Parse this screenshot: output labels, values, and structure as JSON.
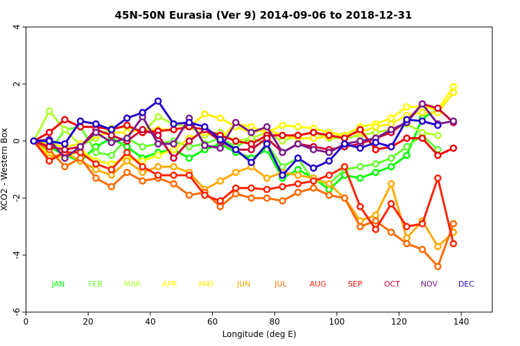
{
  "chart_data": {
    "type": "line",
    "title": "45N-50N Eurasia (Ver 9)   2014-09-06 to 2018-12-31",
    "xlabel": "Longitude (deg E)",
    "ylabel": "XCO2 - Western Box",
    "xlim": [
      0,
      150
    ],
    "ylim": [
      -6,
      4
    ],
    "xticks": [
      0,
      20,
      40,
      60,
      80,
      100,
      120,
      140
    ],
    "yticks": [
      -6,
      -4,
      -2,
      0,
      2,
      4
    ],
    "grid": false,
    "legend_position": "bottom",
    "series": [
      {
        "name": "JAN",
        "color": "#00ff00",
        "x": [
          2.5,
          7.5,
          12.5,
          17.5,
          22.5,
          27.5,
          32.5,
          37.5,
          42.5,
          47.5,
          52.5,
          57.5,
          62.5,
          67.5,
          72.5,
          77.5,
          82.5,
          87.5,
          92.5,
          97.5,
          102.5,
          107.5,
          112.5,
          117.5,
          122.5,
          127.5,
          132.5
        ],
        "y": [
          0.0,
          -0.2,
          -0.5,
          -0.7,
          -0.2,
          0.1,
          -0.2,
          -0.6,
          -0.4,
          -0.3,
          -0.6,
          -0.3,
          -0.1,
          -0.4,
          -0.6,
          -0.3,
          -1.3,
          -1.0,
          -1.3,
          -1.7,
          -1.2,
          -1.3,
          -1.1,
          -0.9,
          -0.5,
          0.8,
          1.1
        ]
      },
      {
        "name": "FEB",
        "color": "#66ff33",
        "x": [
          2.5,
          7.5,
          12.5,
          17.5,
          22.5,
          27.5,
          32.5,
          37.5,
          42.5,
          47.5,
          52.5,
          57.5,
          62.5,
          67.5,
          72.5,
          77.5,
          82.5,
          87.5,
          92.5,
          97.5,
          102.5,
          107.5,
          112.5,
          117.5,
          122.5,
          127.5,
          132.5
        ],
        "y": [
          0.0,
          -0.4,
          0.4,
          0.5,
          -0.4,
          -0.5,
          0.1,
          -0.2,
          -0.1,
          0.0,
          -0.2,
          -0.1,
          0.1,
          -0.2,
          0.1,
          -0.1,
          -0.9,
          -0.6,
          -1.4,
          -1.5,
          -1.0,
          -0.9,
          -0.8,
          -0.6,
          -0.2,
          0.2,
          -0.3
        ]
      },
      {
        "name": "MAR",
        "color": "#b2ff2e",
        "x": [
          2.5,
          7.5,
          12.5,
          17.5,
          22.5,
          27.5,
          32.5,
          37.5,
          42.5,
          47.5,
          52.5,
          57.5,
          62.5,
          67.5,
          72.5,
          77.5,
          82.5,
          87.5,
          92.5,
          97.5,
          102.5,
          107.5,
          112.5,
          117.5,
          122.5,
          127.5,
          132.5
        ],
        "y": [
          0.0,
          1.05,
          0.4,
          -0.15,
          0.1,
          0.45,
          0.5,
          0.3,
          0.85,
          0.6,
          0.5,
          0.2,
          0.3,
          0.0,
          0.1,
          0.3,
          0.0,
          0.2,
          0.3,
          0.1,
          0.1,
          0.2,
          0.3,
          0.4,
          0.6,
          0.3,
          0.2
        ]
      },
      {
        "name": "APR",
        "color": "#ffff00",
        "x": [
          2.5,
          7.5,
          12.5,
          17.5,
          22.5,
          27.5,
          32.5,
          37.5,
          42.5,
          47.5,
          52.5,
          57.5,
          62.5,
          67.5,
          72.5,
          77.5,
          82.5,
          87.5,
          92.5,
          97.5,
          102.5,
          107.5,
          112.5,
          117.5,
          122.5,
          127.5,
          132.5,
          137.5
        ],
        "y": [
          0.0,
          -0.5,
          -0.6,
          -0.3,
          -0.7,
          -0.8,
          -0.6,
          -0.7,
          -0.5,
          -0.3,
          0.1,
          0.3,
          0.1,
          0.6,
          0.5,
          0.3,
          0.55,
          0.5,
          0.45,
          0.3,
          0.2,
          0.5,
          0.6,
          0.8,
          1.2,
          1.2,
          1.1,
          1.9
        ]
      },
      {
        "name": "MAY",
        "color": "#ffee00",
        "x": [
          2.5,
          7.5,
          12.5,
          17.5,
          22.5,
          27.5,
          32.5,
          37.5,
          42.5,
          47.5,
          52.5,
          57.5,
          62.5,
          67.5,
          72.5,
          77.5,
          82.5,
          87.5,
          92.5,
          97.5,
          102.5,
          107.5,
          112.5,
          117.5,
          122.5,
          127.5,
          132.5,
          137.5
        ],
        "y": [
          0.0,
          -0.1,
          -0.2,
          -0.1,
          0.2,
          0.3,
          0.3,
          0.4,
          0.4,
          0.4,
          0.5,
          0.95,
          0.8,
          0.5,
          0.3,
          0.4,
          0.2,
          0.1,
          0.1,
          0.15,
          0.2,
          0.3,
          0.5,
          0.6,
          0.9,
          1.0,
          1.0,
          1.7
        ]
      },
      {
        "name": "JUN",
        "color": "#ffaa00",
        "x": [
          2.5,
          7.5,
          12.5,
          17.5,
          22.5,
          27.5,
          32.5,
          37.5,
          42.5,
          47.5,
          52.5,
          57.5,
          62.5,
          67.5,
          72.5,
          77.5,
          82.5,
          87.5,
          92.5,
          97.5,
          102.5,
          107.5,
          112.5,
          117.5,
          122.5,
          127.5,
          132.5,
          137.5
        ],
        "y": [
          0.0,
          -0.6,
          -0.4,
          -0.7,
          -1.0,
          -1.2,
          -0.7,
          -1.1,
          -0.9,
          -0.9,
          -1.1,
          -1.7,
          -1.4,
          -1.1,
          -0.9,
          -1.3,
          -1.1,
          -1.2,
          -1.3,
          -1.5,
          -2.0,
          -2.8,
          -2.6,
          -1.5,
          -3.4,
          -2.8,
          -3.7,
          -3.2
        ]
      },
      {
        "name": "JUL",
        "color": "#ff6a00",
        "x": [
          2.5,
          7.5,
          12.5,
          17.5,
          22.5,
          27.5,
          32.5,
          37.5,
          42.5,
          47.5,
          52.5,
          57.5,
          62.5,
          67.5,
          72.5,
          77.5,
          82.5,
          87.5,
          92.5,
          97.5,
          102.5,
          107.5,
          112.5,
          117.5,
          122.5,
          127.5,
          132.5,
          137.5
        ],
        "y": [
          0.0,
          -0.3,
          -0.9,
          -0.6,
          -1.3,
          -1.6,
          -1.1,
          -1.4,
          -1.3,
          -1.5,
          -1.9,
          -1.8,
          -2.3,
          -1.85,
          -2.0,
          -2.0,
          -2.1,
          -1.8,
          -1.65,
          -1.9,
          -2.0,
          -3.0,
          -2.8,
          -3.2,
          -3.6,
          -3.8,
          -4.4,
          -2.9
        ]
      },
      {
        "name": "AUG",
        "color": "#ff2200",
        "x": [
          2.5,
          7.5,
          12.5,
          17.5,
          22.5,
          27.5,
          32.5,
          37.5,
          42.5,
          47.5,
          52.5,
          57.5,
          62.5,
          67.5,
          72.5,
          77.5,
          82.5,
          87.5,
          92.5,
          97.5,
          102.5,
          107.5,
          112.5,
          117.5,
          122.5,
          127.5,
          132.5,
          137.5
        ],
        "y": [
          0.0,
          -0.7,
          -0.4,
          -0.4,
          -0.8,
          -1.0,
          -0.4,
          -0.9,
          -1.2,
          -1.2,
          -1.2,
          -1.9,
          -2.1,
          -1.65,
          -1.65,
          -1.7,
          -1.6,
          -1.5,
          -1.4,
          -1.2,
          -0.9,
          -2.3,
          -3.1,
          -2.2,
          -3.0,
          -2.9,
          -1.3,
          -3.6
        ]
      },
      {
        "name": "SEP",
        "color": "#ee0000",
        "x": [
          2.5,
          7.5,
          12.5,
          17.5,
          22.5,
          27.5,
          32.5,
          37.5,
          42.5,
          47.5,
          52.5,
          57.5,
          62.5,
          67.5,
          72.5,
          77.5,
          82.5,
          87.5,
          92.5,
          97.5,
          102.5,
          107.5,
          112.5,
          117.5,
          122.5,
          127.5,
          132.5,
          137.5
        ],
        "y": [
          0.0,
          0.3,
          0.75,
          0.5,
          0.5,
          0.4,
          0.55,
          0.3,
          0.35,
          0.4,
          0.5,
          0.4,
          0.2,
          0.0,
          -0.1,
          0.2,
          0.2,
          0.2,
          0.3,
          0.2,
          0.1,
          0.4,
          -0.3,
          -0.2,
          0.1,
          0.1,
          -0.5,
          -0.25
        ]
      },
      {
        "name": "OCT",
        "color": "#cc0033",
        "x": [
          2.5,
          7.5,
          12.5,
          17.5,
          22.5,
          27.5,
          32.5,
          37.5,
          42.5,
          47.5,
          52.5,
          57.5,
          62.5,
          67.5,
          72.5,
          77.5,
          82.5,
          87.5,
          92.5,
          97.5,
          102.5,
          107.5,
          112.5,
          117.5,
          122.5,
          127.5,
          132.5,
          137.5
        ],
        "y": [
          0.0,
          -0.2,
          -0.3,
          -0.2,
          0.4,
          0.2,
          0.0,
          0.4,
          0.2,
          -0.6,
          0.0,
          0.4,
          0.0,
          -0.3,
          -0.3,
          0.1,
          -0.4,
          -0.1,
          -0.2,
          -0.3,
          -0.2,
          -0.1,
          0.1,
          0.3,
          0.7,
          1.3,
          1.15,
          0.65
        ]
      },
      {
        "name": "NOV",
        "color": "#7a1a8a",
        "x": [
          2.5,
          7.5,
          12.5,
          17.5,
          22.5,
          27.5,
          32.5,
          37.5,
          42.5,
          47.5,
          52.5,
          57.5,
          62.5,
          67.5,
          72.5,
          77.5,
          82.5,
          87.5,
          92.5,
          97.5,
          102.5,
          107.5,
          112.5,
          117.5,
          122.5,
          127.5,
          132.5,
          137.5
        ],
        "y": [
          0.0,
          0.05,
          -0.6,
          -0.2,
          0.3,
          -0.05,
          0.1,
          0.85,
          -0.1,
          -0.1,
          0.8,
          -0.15,
          -0.25,
          0.65,
          0.3,
          0.5,
          -0.4,
          -0.1,
          -0.3,
          -0.4,
          -0.1,
          0.0,
          0.1,
          0.4,
          0.65,
          1.3,
          0.6,
          0.7
        ]
      },
      {
        "name": "DEC",
        "color": "#2200cc",
        "x": [
          2.5,
          7.5,
          12.5,
          17.5,
          22.5,
          27.5,
          32.5,
          37.5,
          42.5,
          47.5,
          52.5,
          57.5,
          62.5,
          67.5,
          72.5,
          77.5,
          82.5,
          87.5,
          92.5,
          97.5,
          102.5,
          107.5,
          112.5,
          117.5,
          122.5,
          127.5,
          132.5
        ],
        "y": [
          0.0,
          0.0,
          -0.1,
          0.7,
          0.6,
          0.4,
          0.8,
          1.0,
          1.4,
          0.6,
          0.65,
          0.5,
          0.05,
          -0.3,
          -0.75,
          -0.1,
          -1.2,
          -0.6,
          -0.95,
          -0.7,
          -0.1,
          -0.25,
          -0.05,
          -0.2,
          0.75,
          0.7,
          0.55
        ]
      }
    ]
  }
}
